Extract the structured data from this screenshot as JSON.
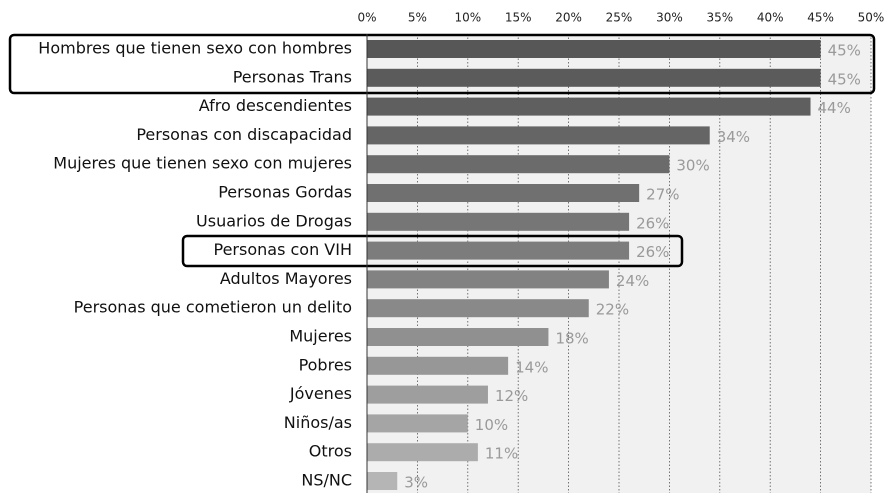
{
  "chart_data": {
    "type": "barh",
    "categories": [
      "Hombres que tienen sexo con hombres",
      "Personas Trans",
      "Afro descendientes",
      "Personas con discapacidad",
      "Mujeres que tienen sexo con mujeres",
      "Personas Gordas",
      "Usuarios de Drogas",
      "Personas con VIH",
      "Adultos Mayores",
      "Personas que cometieron un delito",
      "Mujeres",
      "Pobres",
      "Jóvenes",
      "Niños/as",
      "Otros",
      "NS/NC"
    ],
    "values": [
      45,
      45,
      44,
      34,
      30,
      27,
      26,
      26,
      24,
      22,
      18,
      14,
      12,
      10,
      11,
      3
    ],
    "value_labels": [
      "45%",
      "45%",
      "44%",
      "34%",
      "30%",
      "27%",
      "26%",
      "26%",
      "24%",
      "22%",
      "18%",
      "14%",
      "12%",
      "10%",
      "11%",
      "3%"
    ],
    "colors": [
      "#575757",
      "#5b5b5b",
      "#5f5f5f",
      "#656565",
      "#6b6b6b",
      "#707070",
      "#767676",
      "#7c7c7c",
      "#828282",
      "#898989",
      "#909090",
      "#979797",
      "#9e9e9e",
      "#a5a5a5",
      "#acacac",
      "#b5b5b5"
    ],
    "xlim": [
      0,
      50
    ],
    "xticks": [
      {
        "value": 0,
        "label": "0%"
      },
      {
        "value": 5,
        "label": "5%"
      },
      {
        "value": 10,
        "label": "10%"
      },
      {
        "value": 15,
        "label": "15%"
      },
      {
        "value": 20,
        "label": "20%"
      },
      {
        "value": 25,
        "label": "25%"
      },
      {
        "value": 30,
        "label": "30%"
      },
      {
        "value": 35,
        "label": "35%"
      },
      {
        "value": 40,
        "label": "40%"
      },
      {
        "value": 45,
        "label": "45%"
      },
      {
        "value": 50,
        "label": "50%"
      }
    ],
    "grid": true
  }
}
